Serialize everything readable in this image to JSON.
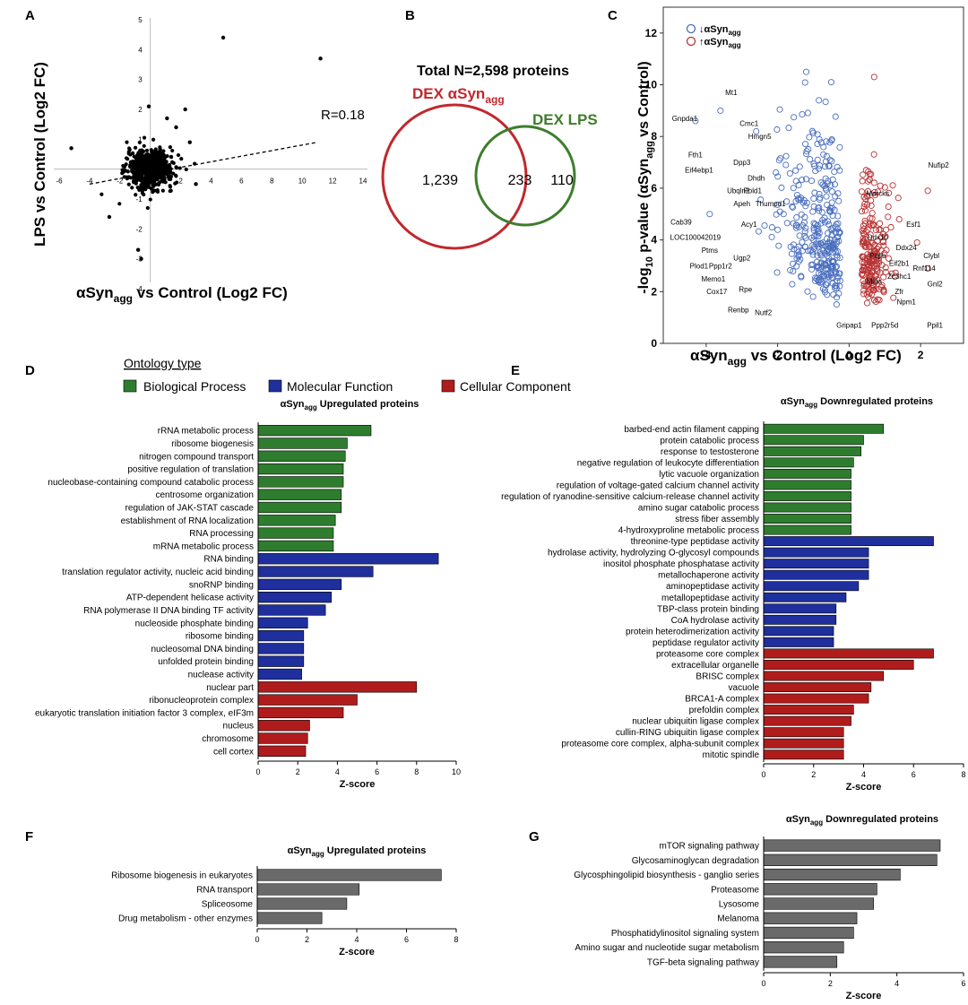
{
  "colors": {
    "bp": "#2e7d2e",
    "mf": "#1f2f9e",
    "cc": "#b01c1c",
    "gray": "#6a6a6a",
    "down_point": "#4a6fbf",
    "up_point": "#b83232",
    "venn_red": "#c0282d",
    "venn_green": "#3e7d2c"
  },
  "panels": {
    "A": "A",
    "B": "B",
    "C": "C",
    "D": "D",
    "E": "E",
    "F": "F",
    "G": "G"
  },
  "legend": {
    "title": "Ontology type",
    "bp": "Biological Process",
    "mf": "Molecular Function",
    "cc": "Cellular Component"
  },
  "chart_data": [
    {
      "id": "A",
      "type": "scatter",
      "xlabel_main": "αSyn",
      "xlabel_sub": "agg",
      "xlabel_rest": " vs Control (Log2 FC)",
      "ylabel": "LPS vs Control (Log2 FC)",
      "xlim": [
        -6,
        14
      ],
      "ylim": [
        -4,
        5
      ],
      "xticks": [
        "-6",
        "-4",
        "-2",
        "2",
        "4",
        "6",
        "8",
        "10",
        "12",
        "14"
      ],
      "yticks": [
        "-4",
        "-3",
        "-2",
        "-1",
        "1",
        "2",
        "3",
        "4",
        "5"
      ],
      "annotation": "R=0.18",
      "trend": {
        "x": [
          -4,
          11
        ],
        "y": [
          -0.5,
          0.9
        ]
      },
      "outliers": [
        [
          4.8,
          4.4
        ],
        [
          11.2,
          3.7
        ],
        [
          -0.8,
          -2.7
        ],
        [
          -0.6,
          -3.0
        ],
        [
          -5.2,
          0.7
        ],
        [
          -0.1,
          2.1
        ],
        [
          2.3,
          2.0
        ],
        [
          1.1,
          1.7
        ],
        [
          1.7,
          1.4
        ],
        [
          -2.7,
          -1.6
        ],
        [
          3.0,
          -0.5
        ],
        [
          2.6,
          0.9
        ]
      ]
    },
    {
      "id": "B",
      "type": "venn",
      "title": "Total N=2,598 proteins",
      "set1_main": "DEX αSyn",
      "set1_sub": "agg",
      "set2": "DEX LPS",
      "only1": "1,239",
      "both": "233",
      "only2": "110"
    },
    {
      "id": "C",
      "type": "scatter",
      "xlabel_main": "αSyn",
      "xlabel_sub": "agg",
      "xlabel_rest": " vs Control (Log2 FC)",
      "ylabel_pre": "-log",
      "ylabel_sub": "10",
      "ylabel_mid": " p-value (αSyn",
      "ylabel_sub2": "agg",
      "ylabel_post": " vs Control)",
      "xlim": [
        -5.2,
        3.2
      ],
      "ylim": [
        0,
        13
      ],
      "xticks": [
        -4,
        -2,
        0,
        2
      ],
      "yticks": [
        0,
        2,
        4,
        6,
        8,
        10,
        12
      ],
      "legend_down": "↓αSyn",
      "legend_up": "↑αSyn",
      "legend_sub": "agg",
      "labels": [
        {
          "text": "Gnpda1",
          "x": -4.6,
          "y": 8.6
        },
        {
          "text": "Mt1",
          "x": -3.3,
          "y": 9.6
        },
        {
          "text": "Cmc1",
          "x": -2.8,
          "y": 8.4
        },
        {
          "text": "Hmgn5",
          "x": -2.5,
          "y": 7.9
        },
        {
          "text": "Fth1",
          "x": -4.3,
          "y": 7.2
        },
        {
          "text": "Dpp3",
          "x": -3.0,
          "y": 6.9
        },
        {
          "text": "Eif4ebp1",
          "x": -4.2,
          "y": 6.6
        },
        {
          "text": "Dhdh",
          "x": -2.6,
          "y": 6.3
        },
        {
          "text": "Ubqln2",
          "x": -3.1,
          "y": 5.8
        },
        {
          "text": "Pold1",
          "x": -2.7,
          "y": 5.8
        },
        {
          "text": "Apeh",
          "x": -3.0,
          "y": 5.3
        },
        {
          "text": "Thumpd1",
          "x": -2.2,
          "y": 5.3
        },
        {
          "text": "Cab39",
          "x": -4.7,
          "y": 4.6
        },
        {
          "text": "Acy1",
          "x": -2.8,
          "y": 4.5
        },
        {
          "text": "LOC100042019",
          "x": -4.3,
          "y": 4.0
        },
        {
          "text": "Ptms",
          "x": -3.9,
          "y": 3.5
        },
        {
          "text": "Ugp2",
          "x": -3.0,
          "y": 3.2
        },
        {
          "text": "Plod1",
          "x": -4.2,
          "y": 2.9
        },
        {
          "text": "Ppp1r2",
          "x": -3.6,
          "y": 2.9
        },
        {
          "text": "Memo1",
          "x": -3.8,
          "y": 2.4
        },
        {
          "text": "Rpe",
          "x": -2.9,
          "y": 2.0
        },
        {
          "text": "Cox17",
          "x": -3.7,
          "y": 1.9
        },
        {
          "text": "Renbp",
          "x": -3.1,
          "y": 1.2
        },
        {
          "text": "Nutf2",
          "x": -2.4,
          "y": 1.1
        },
        {
          "text": "Nufip2",
          "x": 2.5,
          "y": 6.8
        },
        {
          "text": "Marcks",
          "x": 0.8,
          "y": 5.7
        },
        {
          "text": "Esf1",
          "x": 1.8,
          "y": 4.5
        },
        {
          "text": "Ddx10",
          "x": 0.8,
          "y": 4.0
        },
        {
          "text": "Ddx24",
          "x": 1.6,
          "y": 3.6
        },
        {
          "text": "Clybl",
          "x": 2.3,
          "y": 3.3
        },
        {
          "text": "Eif2b1",
          "x": 1.4,
          "y": 3.0
        },
        {
          "text": "Pitpb",
          "x": 0.8,
          "y": 3.3
        },
        {
          "text": "Rnf114",
          "x": 2.1,
          "y": 2.8
        },
        {
          "text": "Zc3hc1",
          "x": 1.4,
          "y": 2.5
        },
        {
          "text": "Mina",
          "x": 0.7,
          "y": 2.3
        },
        {
          "text": "Gnl2",
          "x": 2.4,
          "y": 2.2
        },
        {
          "text": "Zfr",
          "x": 1.4,
          "y": 1.9
        },
        {
          "text": "Npm1",
          "x": 1.6,
          "y": 1.5
        },
        {
          "text": "Gripap1",
          "x": 0.0,
          "y": 0.6
        },
        {
          "text": "Ppp2r5d",
          "x": 1.0,
          "y": 0.6
        },
        {
          "text": "Ppil1",
          "x": 2.4,
          "y": 0.6
        }
      ],
      "up_highlights": [
        [
          2.2,
          5.9
        ],
        [
          0.7,
          10.3
        ],
        [
          1.4,
          4.8
        ],
        [
          1.9,
          3.9
        ],
        [
          2.2,
          2.9
        ],
        [
          1.2,
          2.7
        ]
      ],
      "down_highlights": [
        [
          -4.3,
          8.6
        ],
        [
          -3.6,
          9.0
        ],
        [
          -1.2,
          10.5
        ],
        [
          -0.5,
          10.1
        ],
        [
          -2.6,
          8.2
        ],
        [
          -3.9,
          5.0
        ]
      ]
    },
    {
      "id": "D",
      "type": "bar",
      "orientation": "horizontal",
      "title_main": "αSyn",
      "title_sub": "agg",
      "title_rest": " Upregulated proteins",
      "xlabel": "Z-score",
      "xlim": [
        0,
        10
      ],
      "xticks": [
        0,
        2,
        4,
        6,
        8,
        10
      ],
      "categories": [
        "rRNA metabolic process",
        "ribosome biogenesis",
        "nitrogen compound transport",
        "positive regulation of translation",
        "nucleobase-containing compound catabolic process",
        "centrosome organization",
        "regulation of JAK-STAT cascade",
        "establishment of RNA localization",
        "RNA processing",
        "mRNA metabolic process",
        "RNA binding",
        "translation regulator activity, nucleic acid binding",
        "snoRNP binding",
        "ATP-dependent helicase activity",
        "RNA polymerase II DNA binding TF activity",
        "nucleoside phosphate binding",
        "ribosome binding",
        "nucleosomal DNA binding",
        "unfolded protein binding",
        "nuclease activity",
        "nuclear part",
        "ribonucleoprotein complex",
        "eukaryotic translation initiation factor 3 complex, eIF3m",
        "nucleus",
        "chromosome",
        "cell cortex"
      ],
      "values": [
        5.7,
        4.5,
        4.4,
        4.3,
        4.3,
        4.2,
        4.2,
        3.9,
        3.8,
        3.8,
        9.1,
        5.8,
        4.2,
        3.7,
        3.4,
        2.5,
        2.3,
        2.3,
        2.3,
        2.2,
        8.0,
        5.0,
        4.3,
        2.6,
        2.5,
        2.4
      ],
      "groups": [
        "bp",
        "bp",
        "bp",
        "bp",
        "bp",
        "bp",
        "bp",
        "bp",
        "bp",
        "bp",
        "mf",
        "mf",
        "mf",
        "mf",
        "mf",
        "mf",
        "mf",
        "mf",
        "mf",
        "mf",
        "cc",
        "cc",
        "cc",
        "cc",
        "cc",
        "cc"
      ]
    },
    {
      "id": "E",
      "type": "bar",
      "orientation": "horizontal",
      "title_main": "αSyn",
      "title_sub": "agg",
      "title_rest": " Downregulated proteins",
      "xlabel": "Z-score",
      "xlim": [
        0,
        8
      ],
      "xticks": [
        0,
        2,
        4,
        6,
        8
      ],
      "categories": [
        "barbed-end actin filament capping",
        "protein catabolic process",
        "response to testosterone",
        "negative regulation of leukocyte differentiation",
        "lytic vacuole organization",
        "regulation of voltage-gated calcium channel activity",
        "regulation of ryanodine-sensitive calcium-release channel activity",
        "amino sugar catabolic process",
        "stress fiber assembly",
        "4-hydroxyproline metabolic process",
        "threonine-type peptidase activity",
        "hydrolase activity, hydrolyzing O-glycosyl compounds",
        "inositol phosphate phosphatase activity",
        "metallochaperone activity",
        "aminopeptidase activity",
        "metallopeptidase activity",
        "TBP-class protein binding",
        "CoA hydrolase activity",
        "protein heterodimerization activity",
        "peptidase regulator activity",
        "proteasome core complex",
        "extracellular organelle",
        "BRISC complex",
        "vacuole",
        "BRCA1-A complex",
        "prefoldin complex",
        "nuclear ubiquitin ligase complex",
        "cullin-RING ubiquitin ligase complex",
        "proteasome core complex, alpha-subunit complex",
        "mitotic spindle"
      ],
      "values": [
        4.8,
        4.0,
        3.9,
        3.6,
        3.5,
        3.5,
        3.5,
        3.5,
        3.5,
        3.5,
        6.8,
        4.2,
        4.2,
        4.2,
        3.8,
        3.3,
        2.9,
        2.9,
        2.8,
        2.8,
        6.8,
        6.0,
        4.8,
        4.3,
        4.2,
        3.6,
        3.5,
        3.2,
        3.2,
        3.2
      ],
      "groups": [
        "bp",
        "bp",
        "bp",
        "bp",
        "bp",
        "bp",
        "bp",
        "bp",
        "bp",
        "bp",
        "mf",
        "mf",
        "mf",
        "mf",
        "mf",
        "mf",
        "mf",
        "mf",
        "mf",
        "mf",
        "cc",
        "cc",
        "cc",
        "cc",
        "cc",
        "cc",
        "cc",
        "cc",
        "cc",
        "cc"
      ]
    },
    {
      "id": "F",
      "type": "bar",
      "orientation": "horizontal",
      "title_main": "αSyn",
      "title_sub": "agg",
      "title_rest": " Upregulated proteins",
      "xlabel": "Z-score",
      "xlim": [
        0,
        8
      ],
      "xticks": [
        0,
        2,
        4,
        6,
        8
      ],
      "categories": [
        "Ribosome biogenesis in eukaryotes",
        "RNA transport",
        "Spliceosome",
        "Drug metabolism - other enzymes"
      ],
      "values": [
        7.4,
        4.1,
        3.6,
        2.6
      ]
    },
    {
      "id": "G",
      "type": "bar",
      "orientation": "horizontal",
      "title_main": "αSyn",
      "title_sub": "agg",
      "title_rest": " Downregulated proteins",
      "xlabel": "Z-score",
      "xlim": [
        0,
        6
      ],
      "xticks": [
        0,
        2,
        4,
        6
      ],
      "categories": [
        "mTOR signaling pathway",
        "Glycosaminoglycan degradation",
        "Glycosphingolipid biosynthesis - ganglio series",
        "Proteasome",
        "Lysosome",
        "Melanoma",
        "Phosphatidylinositol signaling system",
        "Amino sugar and nucleotide sugar metabolism",
        "TGF-beta signaling pathway"
      ],
      "values": [
        5.3,
        5.2,
        4.1,
        3.4,
        3.3,
        2.8,
        2.7,
        2.4,
        2.2
      ]
    }
  ]
}
